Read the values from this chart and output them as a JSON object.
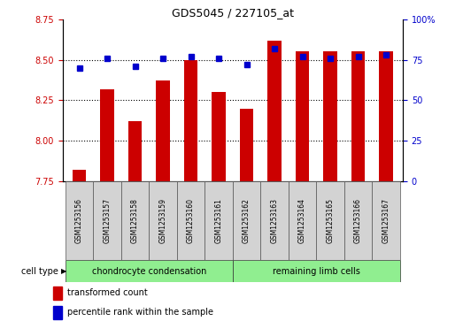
{
  "title": "GDS5045 / 227105_at",
  "samples": [
    "GSM1253156",
    "GSM1253157",
    "GSM1253158",
    "GSM1253159",
    "GSM1253160",
    "GSM1253161",
    "GSM1253162",
    "GSM1253163",
    "GSM1253164",
    "GSM1253165",
    "GSM1253166",
    "GSM1253167"
  ],
  "transformed_count": [
    7.82,
    8.32,
    8.12,
    8.37,
    8.5,
    8.3,
    8.2,
    8.62,
    8.55,
    8.55,
    8.55,
    8.55
  ],
  "percentile_rank": [
    70,
    76,
    71,
    76,
    77,
    76,
    72,
    82,
    77,
    76,
    77,
    78
  ],
  "ylim_left": [
    7.75,
    8.75
  ],
  "ylim_right": [
    0,
    100
  ],
  "yticks_left": [
    7.75,
    8.0,
    8.25,
    8.5,
    8.75
  ],
  "yticks_right": [
    0,
    25,
    50,
    75,
    100
  ],
  "bar_color": "#cc0000",
  "dot_color": "#0000cc",
  "bar_bottom": 7.75,
  "cell_types": [
    {
      "label": "chondrocyte condensation",
      "n": 6,
      "color": "#90ee90"
    },
    {
      "label": "remaining limb cells",
      "n": 6,
      "color": "#90ee90"
    }
  ],
  "group1_indices": [
    0,
    1,
    2,
    3,
    4,
    5
  ],
  "group2_indices": [
    6,
    7,
    8,
    9,
    10,
    11
  ],
  "legend_items": [
    {
      "label": "transformed count",
      "color": "#cc0000"
    },
    {
      "label": "percentile rank within the sample",
      "color": "#0000cc"
    }
  ],
  "xlabel_cell_type": "cell type",
  "tick_label_color_left": "#cc0000",
  "tick_label_color_right": "#0000cc",
  "background_plot": "#ffffff"
}
